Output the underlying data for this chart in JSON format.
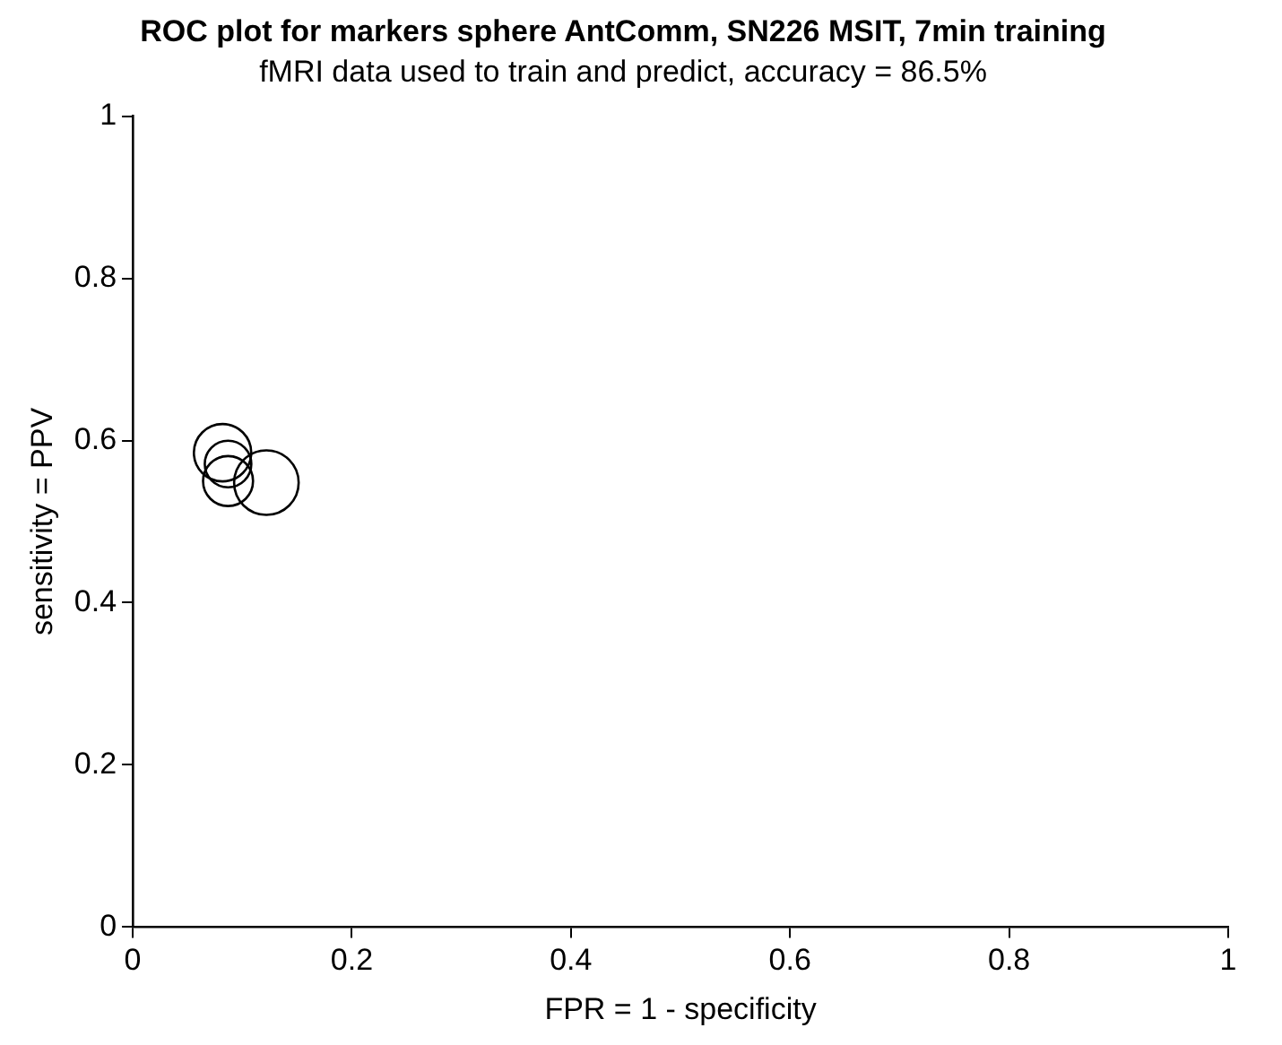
{
  "chart_data": {
    "type": "bubble",
    "title": "ROC plot for markers sphere AntComm, SN226 MSIT, 7min training",
    "subtitle": "fMRI data used to train and predict, accuracy = 86.5%",
    "xlabel": "FPR = 1 - specificity",
    "ylabel": "sensitivity = PPV",
    "x": [
      0.082,
      0.087,
      0.087,
      0.122
    ],
    "values": [
      0.585,
      0.571,
      0.55,
      0.548
    ],
    "sizes": [
      0.79,
      0.52,
      0.6,
      1
    ],
    "color": "#000000",
    "xlim": [
      0,
      1
    ],
    "xticks": [
      0,
      0.2,
      0.4,
      0.6,
      0.8,
      1
    ],
    "ylim": [
      0,
      1
    ],
    "yticks": [
      0,
      0.2,
      0.4,
      0.6,
      0.8,
      1
    ],
    "grid": false,
    "legend": false
  }
}
